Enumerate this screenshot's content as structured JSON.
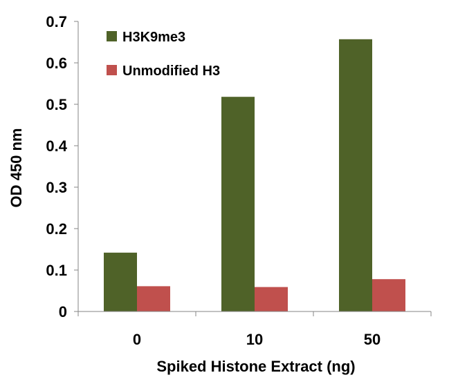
{
  "chart_data": {
    "type": "bar",
    "title": "",
    "xlabel": "Spiked Histone Extract (ng)",
    "ylabel": "OD 450 nm",
    "categories": [
      "0",
      "10",
      "50"
    ],
    "series": [
      {
        "name": "H3K9me3",
        "values": [
          0.142,
          0.518,
          0.657
        ],
        "color": "#4f6228"
      },
      {
        "name": "Unmodified H3",
        "values": [
          0.061,
          0.059,
          0.078
        ],
        "color": "#c0504d"
      }
    ],
    "ylim": [
      0,
      0.7
    ],
    "yticks": [
      "0",
      "0.1",
      "0.2",
      "0.3",
      "0.4",
      "0.5",
      "0.6",
      "0.7"
    ],
    "grid": false,
    "legend_position": "top-left"
  }
}
